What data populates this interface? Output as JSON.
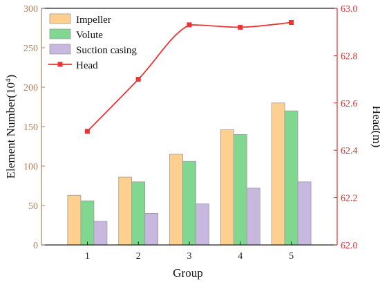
{
  "chart_data": {
    "type": "bar",
    "xlabel": "Group",
    "ylabel_left": {
      "base": "Element Number(10",
      "sup": "4",
      "tail": ")"
    },
    "ylabel_right": "Head(m)",
    "categories": [
      "1",
      "2",
      "3",
      "4",
      "5"
    ],
    "ylim_left": [
      0,
      300
    ],
    "yticks_left": [
      "0",
      "50",
      "100",
      "150",
      "200",
      "250",
      "300"
    ],
    "ylim_right": [
      62.0,
      63.0
    ],
    "yticks_right": [
      "62.0",
      "62.2",
      "62.4",
      "62.6",
      "62.8",
      "63.0"
    ],
    "grid": false,
    "legend_position": "top-left",
    "series": [
      {
        "name": "Impeller",
        "kind": "bar",
        "axis": "left",
        "color": "#fdd090",
        "values": [
          63,
          86,
          115,
          146,
          180
        ]
      },
      {
        "name": "Volute",
        "kind": "bar",
        "axis": "left",
        "color": "#80d890",
        "values": [
          56,
          80,
          106,
          140,
          170
        ]
      },
      {
        "name": "Suction casing",
        "kind": "bar",
        "axis": "left",
        "color": "#c8b8e0",
        "values": [
          30,
          40,
          52,
          72,
          80
        ]
      },
      {
        "name": "Head",
        "kind": "line",
        "axis": "right",
        "color": "#ee3333",
        "marker": "square",
        "values": [
          62.48,
          62.7,
          62.93,
          62.92,
          62.94
        ]
      }
    ]
  }
}
